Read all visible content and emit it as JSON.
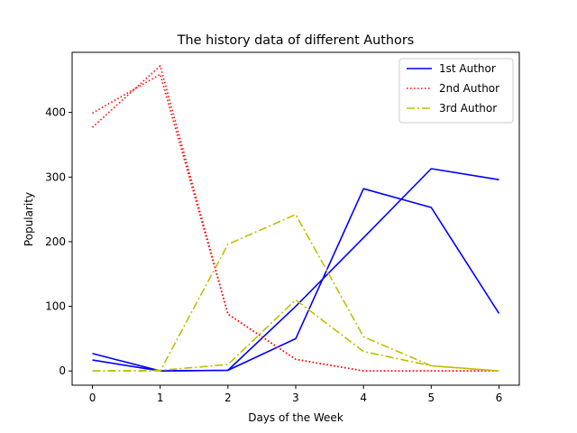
{
  "chart_data": {
    "type": "line",
    "title": "The history data of different Authors",
    "xlabel": "Days of the Week",
    "ylabel": "Popularity",
    "x_ticks": [
      "0",
      "1",
      "2",
      "3",
      "4",
      "5",
      "6"
    ],
    "y_ticks": [
      "0",
      "100",
      "200",
      "300",
      "400"
    ],
    "xlim": [
      -0.3,
      6.3
    ],
    "ylim": [
      -22,
      493
    ],
    "legend_position": "top-right",
    "grid": false,
    "series": [
      {
        "name": "1st Author",
        "color": "#0000ff",
        "style": "solid",
        "lines": [
          {
            "x": [
              0,
              1,
              2,
              3,
              4,
              5,
              6
            ],
            "y": [
              27,
              0,
              1,
              100,
              206,
              313,
              296
            ]
          },
          {
            "x": [
              0,
              1,
              2,
              3,
              4,
              5,
              6
            ],
            "y": [
              17,
              0,
              1,
              50,
              282,
              253,
              89
            ]
          }
        ]
      },
      {
        "name": "2nd Author",
        "color": "#ff0000",
        "style": "dotted",
        "lines": [
          {
            "x": [
              0,
              1,
              2,
              3,
              4,
              5,
              6
            ],
            "y": [
              377,
              472,
              88,
              18,
              0,
              0,
              0
            ]
          },
          {
            "x": [
              0,
              1,
              2,
              3,
              4,
              5,
              6
            ],
            "y": [
              399,
              459,
              88,
              18,
              0,
              0,
              0
            ]
          }
        ]
      },
      {
        "name": "3rd Author",
        "color": "#bfbf00",
        "style": "dashdot",
        "lines": [
          {
            "x": [
              0,
              1,
              2,
              3,
              4,
              5,
              6
            ],
            "y": [
              0,
              0,
              196,
              242,
              53,
              8,
              0
            ]
          },
          {
            "x": [
              0,
              1,
              2,
              3,
              4,
              5,
              6
            ],
            "y": [
              0,
              1,
              10,
              110,
              30,
              8,
              0
            ]
          }
        ]
      }
    ]
  }
}
